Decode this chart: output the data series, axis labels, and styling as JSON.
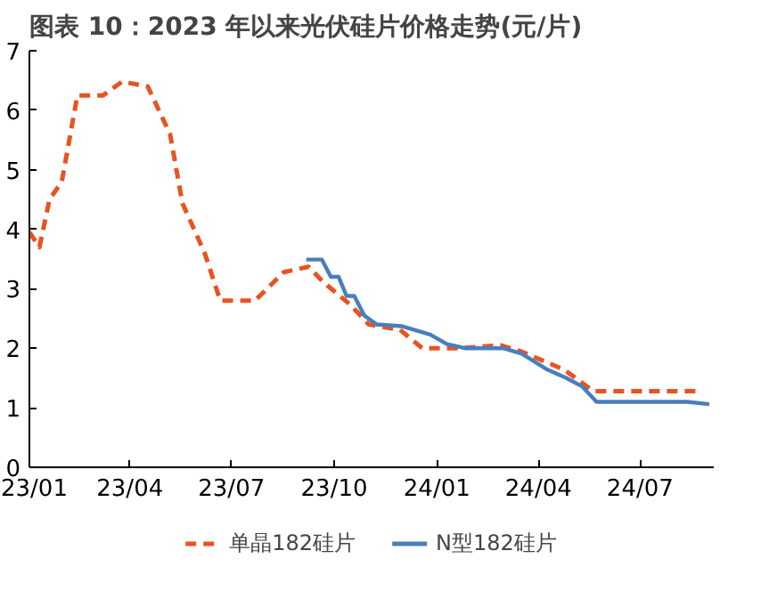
{
  "chart_data": {
    "type": "line",
    "title": "图表 10：2023 年以来光伏硅片价格走势(元/片)",
    "xlim": [
      "2023-01-01",
      "2024-09-05"
    ],
    "xticks": [
      {
        "value": "2023-01-01",
        "label": "23/01"
      },
      {
        "value": "2023-04-01",
        "label": "23/04"
      },
      {
        "value": "2023-07-01",
        "label": "23/07"
      },
      {
        "value": "2023-10-01",
        "label": "23/10"
      },
      {
        "value": "2024-01-01",
        "label": "24/01"
      },
      {
        "value": "2024-04-01",
        "label": "24/04"
      },
      {
        "value": "2024-07-01",
        "label": "24/07"
      }
    ],
    "ylim": [
      0,
      7
    ],
    "yticks": [
      0,
      1,
      2,
      3,
      4,
      5,
      6,
      7
    ],
    "grid": false,
    "legend": "bottom",
    "series": [
      {
        "name": "单晶182硅片",
        "color": "#e8531f",
        "line_style": "dashed",
        "x": [
          "2023-01-01",
          "2023-01-10",
          "2023-01-19",
          "2023-01-30",
          "2023-02-13",
          "2023-03-08",
          "2023-03-25",
          "2023-04-17",
          "2023-05-07",
          "2023-05-18",
          "2023-06-07",
          "2023-06-21",
          "2023-07-22",
          "2023-08-17",
          "2023-09-08",
          "2023-09-22",
          "2023-10-15",
          "2023-11-01",
          "2023-11-29",
          "2023-12-19",
          "2024-01-19",
          "2024-02-27",
          "2024-03-16",
          "2024-04-24",
          "2024-05-20",
          "2024-08-22"
        ],
        "values": [
          3.95,
          3.7,
          4.5,
          4.8,
          6.25,
          6.25,
          6.48,
          6.4,
          5.6,
          4.44,
          3.6,
          2.8,
          2.8,
          3.28,
          3.37,
          3.1,
          2.74,
          2.4,
          2.31,
          2.0,
          2.0,
          2.05,
          1.95,
          1.64,
          1.28,
          1.28
        ]
      },
      {
        "name": "N型182硅片",
        "color": "#4a7ebb",
        "line_style": "solid",
        "x": [
          "2023-09-06",
          "2023-09-20",
          "2023-09-28",
          "2023-10-05",
          "2023-10-12",
          "2023-10-19",
          "2023-10-28",
          "2023-11-08",
          "2023-12-01",
          "2023-12-26",
          "2024-01-10",
          "2024-01-27",
          "2024-03-01",
          "2024-03-17",
          "2024-04-09",
          "2024-04-26",
          "2024-05-10",
          "2024-05-23",
          "2024-08-12",
          "2024-09-01"
        ],
        "values": [
          3.49,
          3.49,
          3.2,
          3.2,
          2.88,
          2.88,
          2.55,
          2.4,
          2.37,
          2.23,
          2.07,
          2.0,
          2.0,
          1.91,
          1.64,
          1.5,
          1.36,
          1.1,
          1.1,
          1.06
        ]
      }
    ]
  }
}
